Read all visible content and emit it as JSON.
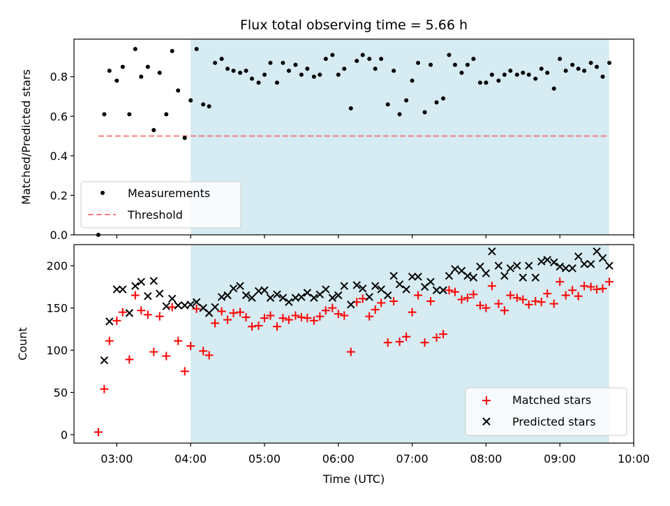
{
  "chart_data": [
    {
      "type": "scatter",
      "title": "Flux total observing time = 5.66 h",
      "xlabel": "",
      "ylabel": "Matched/Predicted stars",
      "xlim_hours": [
        2.42,
        10.0
      ],
      "ylim": [
        0,
        0.99
      ],
      "yticks": [
        0.0,
        0.2,
        0.4,
        0.6,
        0.8
      ],
      "ytick_labels": [
        "0.0",
        "0.2",
        "0.4",
        "0.6",
        "0.8"
      ],
      "shaded_region_hours": [
        4.0,
        9.667
      ],
      "threshold": {
        "name": "Threshold",
        "value": 0.5,
        "x_range_hours": [
          2.75,
          9.667
        ],
        "color": "#f08080"
      },
      "legend": {
        "position": "lower-left",
        "entries": [
          "Measurements",
          "Threshold"
        ]
      },
      "series": [
        {
          "name": "Measurements",
          "color": "#000000",
          "marker": "dot",
          "x": [
            2.75,
            2.83,
            2.9,
            3.0,
            3.08,
            3.17,
            3.25,
            3.33,
            3.42,
            3.5,
            3.58,
            3.67,
            3.75,
            3.83,
            3.92,
            4.0,
            4.08,
            4.17,
            4.25,
            4.33,
            4.42,
            4.5,
            4.58,
            4.67,
            4.75,
            4.83,
            4.92,
            5.0,
            5.08,
            5.17,
            5.25,
            5.33,
            5.42,
            5.5,
            5.58,
            5.67,
            5.75,
            5.83,
            5.92,
            6.0,
            6.08,
            6.17,
            6.25,
            6.33,
            6.42,
            6.5,
            6.58,
            6.67,
            6.75,
            6.83,
            6.92,
            7.0,
            7.08,
            7.17,
            7.25,
            7.33,
            7.42,
            7.5,
            7.58,
            7.67,
            7.75,
            7.83,
            7.92,
            8.0,
            8.08,
            8.17,
            8.25,
            8.33,
            8.42,
            8.5,
            8.58,
            8.67,
            8.75,
            8.83,
            8.92,
            9.0,
            9.08,
            9.17,
            9.25,
            9.33,
            9.42,
            9.5,
            9.58,
            9.67
          ],
          "y": [
            0.0,
            0.61,
            0.83,
            0.78,
            0.85,
            0.61,
            0.94,
            0.8,
            0.85,
            0.53,
            0.82,
            0.61,
            0.93,
            0.73,
            0.49,
            0.68,
            0.94,
            0.66,
            0.65,
            0.87,
            0.89,
            0.84,
            0.83,
            0.82,
            0.83,
            0.79,
            0.77,
            0.81,
            0.87,
            0.77,
            0.87,
            0.83,
            0.86,
            0.81,
            0.84,
            0.8,
            0.81,
            0.89,
            0.91,
            0.81,
            0.84,
            0.64,
            0.88,
            0.91,
            0.89,
            0.84,
            0.89,
            0.66,
            0.83,
            0.61,
            0.68,
            0.78,
            0.87,
            0.62,
            0.86,
            0.67,
            0.69,
            0.91,
            0.86,
            0.82,
            0.86,
            0.89,
            0.77,
            0.77,
            0.81,
            0.78,
            0.81,
            0.83,
            0.81,
            0.82,
            0.81,
            0.79,
            0.84,
            0.82,
            0.74,
            0.89,
            0.83,
            0.86,
            0.84,
            0.83,
            0.87,
            0.85,
            0.8,
            0.87
          ]
        }
      ]
    },
    {
      "type": "scatter",
      "title": "",
      "xlabel": "Time (UTC)",
      "ylabel": "Count",
      "xlim_hours": [
        2.42,
        10.0
      ],
      "ylim": [
        -10,
        225
      ],
      "yticks": [
        0,
        50,
        100,
        150,
        200
      ],
      "ytick_labels": [
        "0",
        "50",
        "100",
        "150",
        "200"
      ],
      "xticks_hours": [
        3,
        4,
        5,
        6,
        7,
        8,
        9,
        10
      ],
      "xtick_labels": [
        "03:00",
        "04:00",
        "05:00",
        "06:00",
        "07:00",
        "08:00",
        "09:00",
        "10:00"
      ],
      "shaded_region_hours": [
        4.0,
        9.667
      ],
      "legend": {
        "position": "lower-right",
        "entries": [
          "Matched stars",
          "Predicted stars"
        ]
      },
      "series": [
        {
          "name": "Matched stars",
          "color": "#ff0000",
          "marker": "plus",
          "x": [
            2.75,
            2.83,
            2.9,
            3.0,
            3.08,
            3.17,
            3.25,
            3.33,
            3.42,
            3.5,
            3.58,
            3.67,
            3.75,
            3.83,
            3.92,
            4.0,
            4.08,
            4.17,
            4.25,
            4.33,
            4.42,
            4.5,
            4.58,
            4.67,
            4.75,
            4.83,
            4.92,
            5.0,
            5.08,
            5.17,
            5.25,
            5.33,
            5.42,
            5.5,
            5.58,
            5.67,
            5.75,
            5.83,
            5.92,
            6.0,
            6.08,
            6.17,
            6.25,
            6.33,
            6.42,
            6.5,
            6.58,
            6.67,
            6.75,
            6.83,
            6.92,
            7.0,
            7.08,
            7.17,
            7.25,
            7.33,
            7.42,
            7.5,
            7.58,
            7.67,
            7.75,
            7.83,
            7.92,
            8.0,
            8.08,
            8.17,
            8.25,
            8.33,
            8.42,
            8.5,
            8.58,
            8.67,
            8.75,
            8.83,
            8.92,
            9.0,
            9.08,
            9.17,
            9.25,
            9.33,
            9.42,
            9.5,
            9.58,
            9.67
          ],
          "y": [
            3,
            54,
            111,
            135,
            145,
            89,
            165,
            147,
            142,
            98,
            140,
            93,
            151,
            111,
            75,
            105,
            149,
            99,
            94,
            132,
            146,
            136,
            144,
            145,
            139,
            128,
            129,
            138,
            141,
            128,
            138,
            136,
            141,
            139,
            138,
            135,
            140,
            147,
            150,
            143,
            141,
            98,
            157,
            161,
            140,
            148,
            156,
            109,
            158,
            110,
            116,
            145,
            165,
            109,
            158,
            115,
            119,
            171,
            169,
            160,
            162,
            166,
            153,
            150,
            176,
            155,
            147,
            165,
            162,
            160,
            154,
            158,
            157,
            167,
            155,
            181,
            165,
            171,
            164,
            176,
            175,
            172,
            173,
            181
          ]
        },
        {
          "name": "Predicted stars",
          "color": "#000000",
          "marker": "x",
          "x": [
            2.75,
            2.83,
            2.9,
            3.0,
            3.08,
            3.17,
            3.25,
            3.33,
            3.42,
            3.5,
            3.58,
            3.67,
            3.75,
            3.83,
            3.92,
            4.0,
            4.08,
            4.17,
            4.25,
            4.33,
            4.42,
            4.5,
            4.58,
            4.67,
            4.75,
            4.83,
            4.92,
            5.0,
            5.08,
            5.17,
            5.25,
            5.33,
            5.42,
            5.5,
            5.58,
            5.67,
            5.75,
            5.83,
            5.92,
            6.0,
            6.08,
            6.17,
            6.25,
            6.33,
            6.42,
            6.5,
            6.58,
            6.67,
            6.75,
            6.83,
            6.92,
            7.0,
            7.08,
            7.17,
            7.25,
            7.33,
            7.42,
            7.5,
            7.58,
            7.67,
            7.75,
            7.83,
            7.92,
            8.0,
            8.08,
            8.17,
            8.25,
            8.33,
            8.42,
            8.5,
            8.58,
            8.67,
            8.75,
            8.83,
            8.92,
            9.0,
            9.08,
            9.17,
            9.25,
            9.33,
            9.42,
            9.5,
            9.58,
            9.67
          ],
          "y": [
            null,
            88,
            134,
            172,
            172,
            144,
            176,
            181,
            164,
            182,
            167,
            152,
            161,
            153,
            153,
            154,
            157,
            150,
            144,
            151,
            163,
            165,
            173,
            176,
            165,
            162,
            170,
            171,
            162,
            166,
            162,
            157,
            162,
            163,
            168,
            162,
            166,
            172,
            162,
            165,
            176,
            154,
            177,
            173,
            163,
            176,
            172,
            165,
            188,
            178,
            172,
            187,
            187,
            175,
            181,
            171,
            171,
            188,
            196,
            194,
            188,
            186,
            199,
            191,
            217,
            200,
            188,
            197,
            200,
            186,
            200,
            186,
            205,
            207,
            204,
            199,
            197,
            197,
            211,
            202,
            202,
            217,
            209,
            200
          ]
        }
      ]
    }
  ]
}
